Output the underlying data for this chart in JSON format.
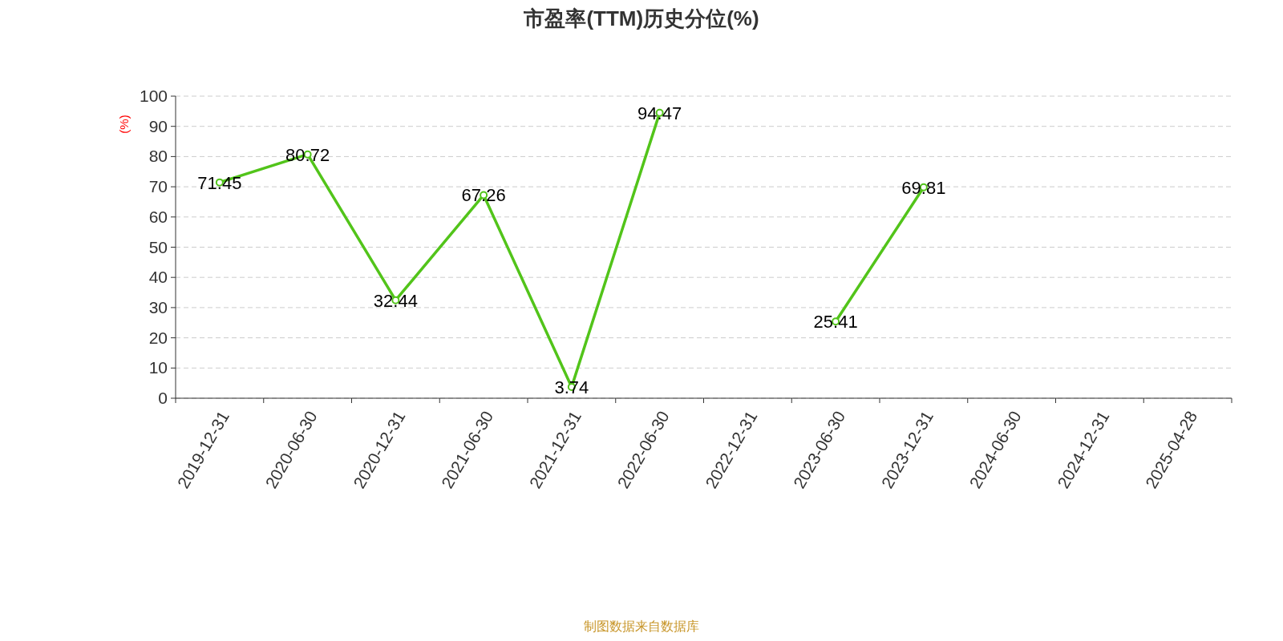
{
  "chart_data": {
    "type": "line",
    "title": "市盈率(TTM)历史分位(%)",
    "ylabel": "(%)",
    "categories": [
      "2019-12-31",
      "2020-06-30",
      "2020-12-31",
      "2021-06-30",
      "2021-12-31",
      "2022-06-30",
      "2022-12-31",
      "2023-06-30",
      "2023-12-31",
      "2024-06-30",
      "2024-12-31",
      "2025-04-28"
    ],
    "values": [
      71.45,
      80.72,
      32.44,
      67.26,
      3.74,
      94.47,
      null,
      25.41,
      69.81,
      null,
      null,
      null
    ],
    "color": "#52c41a",
    "ylim": [
      0,
      100
    ],
    "yticks": [
      0,
      10,
      20,
      30,
      40,
      50,
      60,
      70,
      80,
      90,
      100
    ],
    "grid": "y",
    "marker": "circle",
    "data_labels": true,
    "annotations": [
      "制图数据来自数据库"
    ]
  }
}
